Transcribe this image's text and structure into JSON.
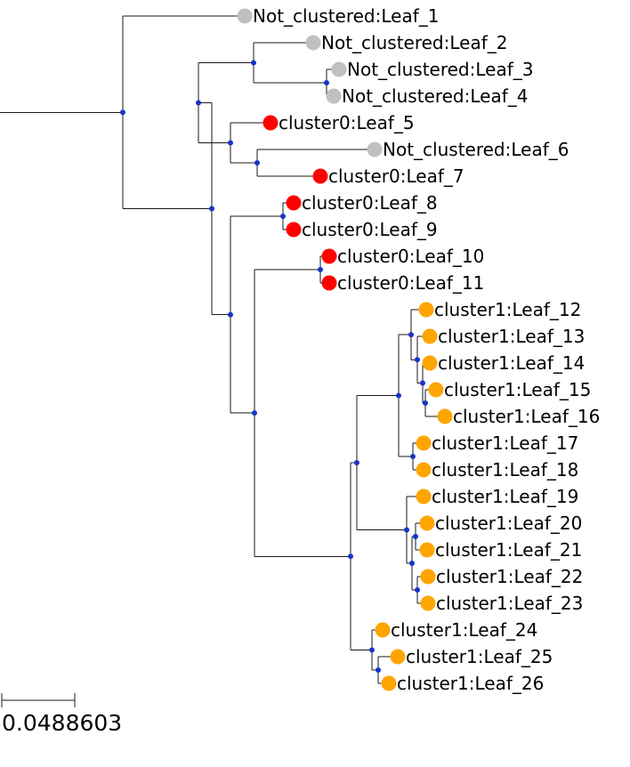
{
  "tree": {
    "leaves": [
      {
        "label": "Not_clustered:Leaf_1",
        "color": "#c0c0c0"
      },
      {
        "label": "Not_clustered:Leaf_2",
        "color": "#c0c0c0"
      },
      {
        "label": "Not_clustered:Leaf_3",
        "color": "#c0c0c0"
      },
      {
        "label": "Not_clustered:Leaf_4",
        "color": "#c0c0c0"
      },
      {
        "label": "cluster0:Leaf_5",
        "color": "#ff0000"
      },
      {
        "label": "Not_clustered:Leaf_6",
        "color": "#c0c0c0"
      },
      {
        "label": "cluster0:Leaf_7",
        "color": "#ff0000"
      },
      {
        "label": "cluster0:Leaf_8",
        "color": "#ff0000"
      },
      {
        "label": "cluster0:Leaf_9",
        "color": "#ff0000"
      },
      {
        "label": "cluster0:Leaf_10",
        "color": "#ff0000"
      },
      {
        "label": "cluster0:Leaf_11",
        "color": "#ff0000"
      },
      {
        "label": "cluster1:Leaf_12",
        "color": "#ffa500"
      },
      {
        "label": "cluster1:Leaf_13",
        "color": "#ffa500"
      },
      {
        "label": "cluster1:Leaf_14",
        "color": "#ffa500"
      },
      {
        "label": "cluster1:Leaf_15",
        "color": "#ffa500"
      },
      {
        "label": "cluster1:Leaf_16",
        "color": "#ffa500"
      },
      {
        "label": "cluster1:Leaf_17",
        "color": "#ffa500"
      },
      {
        "label": "cluster1:Leaf_18",
        "color": "#ffa500"
      },
      {
        "label": "cluster1:Leaf_19",
        "color": "#ffa500"
      },
      {
        "label": "cluster1:Leaf_20",
        "color": "#ffa500"
      },
      {
        "label": "cluster1:Leaf_21",
        "color": "#ffa500"
      },
      {
        "label": "cluster1:Leaf_22",
        "color": "#ffa500"
      },
      {
        "label": "cluster1:Leaf_23",
        "color": "#ffa500"
      },
      {
        "label": "cluster1:Leaf_24",
        "color": "#ffa500"
      },
      {
        "label": "cluster1:Leaf_25",
        "color": "#ffa500"
      },
      {
        "label": "cluster1:Leaf_26",
        "color": "#ffa500"
      }
    ],
    "internal_node_color": "#1535c8",
    "branch_color": "#1a1a1a"
  },
  "scale_bar": {
    "label": "0.0488603"
  }
}
